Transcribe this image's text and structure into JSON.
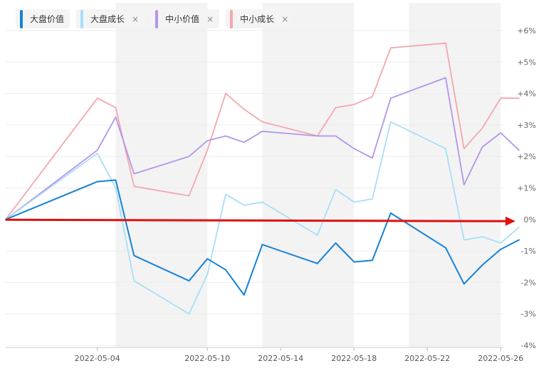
{
  "legend": [
    {
      "label": "大盘价值",
      "color": "#1682d6",
      "closable": false
    },
    {
      "label": "大盘成长",
      "color": "#a8def6",
      "closable": true,
      "close_glyph": "×"
    },
    {
      "label": "中小价值",
      "color": "#b495ea",
      "closable": true,
      "close_glyph": "×"
    },
    {
      "label": "中小成长",
      "color": "#f4a7ac",
      "closable": true,
      "close_glyph": "×"
    }
  ],
  "chart_data": {
    "type": "line",
    "x": [
      "2022-04-29",
      "2022-05-04",
      "2022-05-05",
      "2022-05-06",
      "2022-05-09",
      "2022-05-10",
      "2022-05-11",
      "2022-05-12",
      "2022-05-13",
      "2022-05-16",
      "2022-05-17",
      "2022-05-18",
      "2022-05-19",
      "2022-05-20",
      "2022-05-23",
      "2022-05-24",
      "2022-05-25",
      "2022-05-26",
      "2022-05-27"
    ],
    "x_tick_labels": [
      "2022-05-04",
      "2022-05-10",
      "2022-05-14",
      "2022-05-18",
      "2022-05-22",
      "2022-05-26"
    ],
    "y_tick_labels": [
      "+6%",
      "+5%",
      "+4%",
      "+3%",
      "+2%",
      "+1%",
      "0%",
      "-1%",
      "-2%",
      "-3%",
      "-4%"
    ],
    "ylim": [
      -4,
      6
    ],
    "y_axis_position": "right",
    "grid": true,
    "legend_position": "top-left",
    "series": [
      {
        "name": "大盘价值",
        "color": "#1682d6",
        "values": [
          0.0,
          1.2,
          1.25,
          -1.15,
          -1.95,
          -1.25,
          -1.6,
          -2.4,
          -0.8,
          -1.4,
          -0.75,
          -1.35,
          -1.3,
          0.2,
          -0.9,
          -2.05,
          -1.45,
          -0.95,
          -0.65
        ]
      },
      {
        "name": "大盘成长",
        "color": "#a8def6",
        "values": [
          0.0,
          2.1,
          1.0,
          -1.95,
          -3.0,
          -1.75,
          0.8,
          0.45,
          0.55,
          -0.5,
          0.95,
          0.55,
          0.65,
          3.1,
          2.25,
          -0.65,
          -0.55,
          -0.75,
          -0.25
        ]
      },
      {
        "name": "中小价值",
        "color": "#b495ea",
        "values": [
          0.0,
          2.2,
          3.25,
          1.45,
          2.0,
          2.5,
          2.65,
          2.45,
          2.8,
          2.65,
          2.65,
          2.25,
          1.95,
          3.85,
          4.5,
          1.1,
          2.3,
          2.75,
          2.2
        ]
      },
      {
        "name": "中小成长",
        "color": "#f4a7ac",
        "values": [
          0.0,
          3.85,
          3.55,
          1.05,
          0.75,
          2.2,
          4.0,
          3.5,
          3.1,
          2.65,
          3.55,
          3.65,
          3.9,
          5.45,
          5.6,
          2.25,
          2.9,
          3.85,
          3.85
        ]
      }
    ],
    "shaded_bands": [
      [
        "2022-05-05",
        "2022-05-10"
      ],
      [
        "2022-05-13",
        "2022-05-18"
      ],
      [
        "2022-05-21",
        "2022-05-26"
      ]
    ],
    "annotation_arrow": {
      "color": "#e01010",
      "y": 0,
      "direction": "right"
    }
  }
}
